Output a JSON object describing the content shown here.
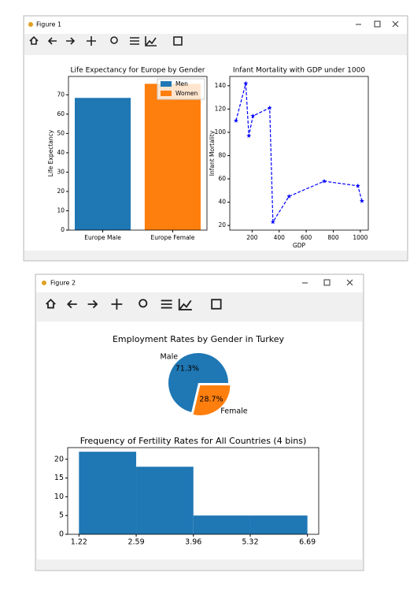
{
  "windows": [
    {
      "title": "Figure 1"
    },
    {
      "title": "Figure 2"
    }
  ],
  "chart_data": [
    {
      "type": "bar",
      "title": "Life Expectancy for Europe by Gender",
      "ylabel": "Life Expectancy",
      "categories": [
        "Europe Male",
        "Europe Female"
      ],
      "series": [
        {
          "name": "Men",
          "color": "#1f77b4",
          "values": [
            68.4,
            null
          ]
        },
        {
          "name": "Women",
          "color": "#ff7f0e",
          "values": [
            null,
            75.7
          ]
        }
      ],
      "ylim": [
        0,
        79.5
      ],
      "yticks": [
        0,
        10,
        20,
        30,
        40,
        50,
        60,
        70
      ],
      "legend": "upper right"
    },
    {
      "type": "line",
      "title": "Infant Mortality with GDP under 1000",
      "xlabel": "GDP",
      "ylabel": "Infant Mortality",
      "x": [
        81,
        153,
        176,
        206,
        330,
        354,
        473,
        733,
        982,
        1012
      ],
      "series": [
        {
          "color": "#0000ff",
          "linestyle": "dashed",
          "marker": "*",
          "values": [
            110,
            142,
            97,
            114,
            121,
            23,
            45,
            58,
            54,
            41
          ]
        }
      ],
      "xlim": [
        35,
        1059
      ],
      "xticks": [
        200,
        400,
        600,
        800,
        1000
      ],
      "ylim": [
        16,
        148
      ],
      "yticks": [
        20,
        40,
        60,
        80,
        100,
        120,
        140
      ]
    },
    {
      "type": "pie",
      "title": "Employment Rates by Gender in Turkey",
      "categories": [
        "Male",
        "Female"
      ],
      "values": [
        71.3,
        28.7
      ],
      "value_labels": [
        "71.3%",
        "28.7%"
      ],
      "colors": [
        "#1f77b4",
        "#ff7f0e"
      ],
      "explode": [
        0,
        0.1
      ]
    },
    {
      "type": "histogram",
      "title": "Frequency of Fertility Rates for All Countries (4 bins)",
      "bins": [
        1.22,
        2.59,
        3.96,
        5.32,
        6.69
      ],
      "values": [
        22,
        18,
        5,
        5
      ],
      "color": "#1f77b4",
      "xlim": [
        0.95,
        6.96
      ],
      "xticks": [
        1.22,
        2.59,
        3.96,
        5.32,
        6.69
      ],
      "ylim": [
        0,
        23.1
      ],
      "yticks": [
        0,
        5,
        10,
        15,
        20
      ]
    }
  ]
}
